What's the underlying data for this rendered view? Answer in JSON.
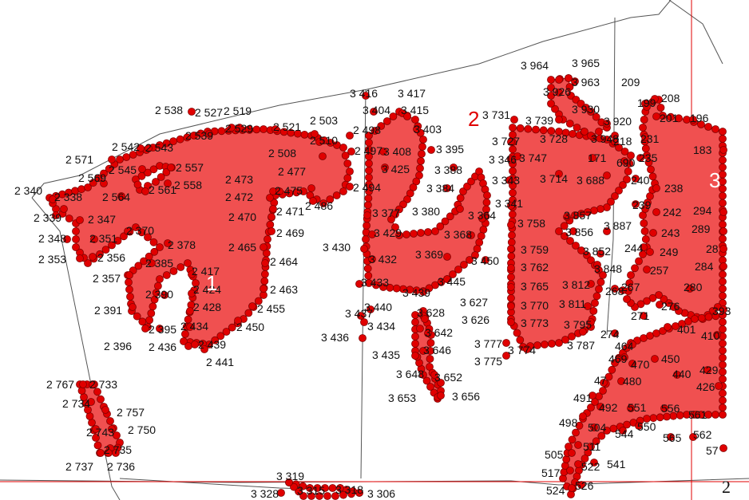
{
  "colors": {
    "fill": "#f05050",
    "marker": "#e00000",
    "marker_edge": "#800000",
    "boundary": "#555555",
    "grid": "#e00000"
  },
  "zones": [
    {
      "id": "zone-1",
      "label": "1",
      "color": "white"
    },
    {
      "id": "zone-2",
      "label": "2",
      "color": "red"
    },
    {
      "id": "zone-3",
      "label": "3",
      "color": "white"
    }
  ],
  "sheet_label": "2",
  "points": [
    {
      "label": "2 340"
    },
    {
      "label": "2 338"
    },
    {
      "label": "2 339"
    },
    {
      "label": "2 348"
    },
    {
      "label": "2 353"
    },
    {
      "label": "2 357"
    },
    {
      "label": "2 391"
    },
    {
      "label": "2 396"
    },
    {
      "label": "2 436"
    },
    {
      "label": "2 439"
    },
    {
      "label": "2 441"
    },
    {
      "label": "2 434"
    },
    {
      "label": "2 395"
    },
    {
      "label": "2 390"
    },
    {
      "label": "2 428"
    },
    {
      "label": "2 424"
    },
    {
      "label": "2 417"
    },
    {
      "label": "2 385"
    },
    {
      "label": "2 378"
    },
    {
      "label": "2 356"
    },
    {
      "label": "2 351"
    },
    {
      "label": "2 370"
    },
    {
      "label": "2 347"
    },
    {
      "label": "2 564"
    },
    {
      "label": "2 569"
    },
    {
      "label": "2 571"
    },
    {
      "label": "2 545"
    },
    {
      "label": "2 542"
    },
    {
      "label": "2 543"
    },
    {
      "label": "2 561"
    },
    {
      "label": "2 558"
    },
    {
      "label": "2 557"
    },
    {
      "label": "2 539"
    },
    {
      "label": "2 538"
    },
    {
      "label": "2 527"
    },
    {
      "label": "2 519"
    },
    {
      "label": "2 529"
    },
    {
      "label": "2 521"
    },
    {
      "label": "2 503"
    },
    {
      "label": "2 510"
    },
    {
      "label": "2 508"
    },
    {
      "label": "2 477"
    },
    {
      "label": "2 473"
    },
    {
      "label": "2 472"
    },
    {
      "label": "2 475"
    },
    {
      "label": "2 470"
    },
    {
      "label": "2 471"
    },
    {
      "label": "2 486"
    },
    {
      "label": "2 469"
    },
    {
      "label": "2 465"
    },
    {
      "label": "2 464"
    },
    {
      "label": "2 463"
    },
    {
      "label": "2 455"
    },
    {
      "label": "2 450"
    },
    {
      "label": "2 498"
    },
    {
      "label": "2 497"
    },
    {
      "label": "2 494"
    },
    {
      "label": "3 416"
    },
    {
      "label": "3 417"
    },
    {
      "label": "3 404"
    },
    {
      "label": "3 415"
    },
    {
      "label": "3 403"
    },
    {
      "label": "3 408"
    },
    {
      "label": "3 395"
    },
    {
      "label": "3 425"
    },
    {
      "label": "3 388"
    },
    {
      "label": "3 384"
    },
    {
      "label": "3 377"
    },
    {
      "label": "3 380"
    },
    {
      "label": "3 364"
    },
    {
      "label": "3 429"
    },
    {
      "label": "3 368"
    },
    {
      "label": "3 430"
    },
    {
      "label": "3 432"
    },
    {
      "label": "3 369"
    },
    {
      "label": "3 450"
    },
    {
      "label": "3 433"
    },
    {
      "label": "3 439"
    },
    {
      "label": "3 445"
    },
    {
      "label": "3 437"
    },
    {
      "label": "3 440"
    },
    {
      "label": "3 434"
    },
    {
      "label": "3 436"
    },
    {
      "label": "3 628"
    },
    {
      "label": "3 627"
    },
    {
      "label": "3 626"
    },
    {
      "label": "3 642"
    },
    {
      "label": "3 646"
    },
    {
      "label": "3 435"
    },
    {
      "label": "3 648"
    },
    {
      "label": "3 652"
    },
    {
      "label": "3 653"
    },
    {
      "label": "3 656"
    },
    {
      "label": "3 731"
    },
    {
      "label": "3 727"
    },
    {
      "label": "3 346"
    },
    {
      "label": "3 343"
    },
    {
      "label": "3 341"
    },
    {
      "label": "3 964"
    },
    {
      "label": "3 965"
    },
    {
      "label": "3 963"
    },
    {
      "label": "3 926"
    },
    {
      "label": "3 930"
    },
    {
      "label": "3 739"
    },
    {
      "label": "3 920"
    },
    {
      "label": "3 728"
    },
    {
      "label": "3 948"
    },
    {
      "label": "3 747"
    },
    {
      "label": "3 714"
    },
    {
      "label": "3 688"
    },
    {
      "label": "3 758"
    },
    {
      "label": "3 857"
    },
    {
      "label": "3 856"
    },
    {
      "label": "3 759"
    },
    {
      "label": "3 852"
    },
    {
      "label": "3 762"
    },
    {
      "label": "3 765"
    },
    {
      "label": "3 812"
    },
    {
      "label": "3 770"
    },
    {
      "label": "3 811"
    },
    {
      "label": "3 773"
    },
    {
      "label": "3 795"
    },
    {
      "label": "3 777"
    },
    {
      "label": "3 774"
    },
    {
      "label": "3 775"
    },
    {
      "label": "3 787"
    },
    {
      "label": "3 887"
    },
    {
      "label": "3 848"
    },
    {
      "label": "209"
    },
    {
      "label": "208"
    },
    {
      "label": "199"
    },
    {
      "label": "201"
    },
    {
      "label": "196"
    },
    {
      "label": "218"
    },
    {
      "label": "231"
    },
    {
      "label": "183"
    },
    {
      "label": "235"
    },
    {
      "label": "171"
    },
    {
      "label": "690"
    },
    {
      "label": "240"
    },
    {
      "label": "238"
    },
    {
      "label": "239"
    },
    {
      "label": "242"
    },
    {
      "label": "294"
    },
    {
      "label": "243"
    },
    {
      "label": "289"
    },
    {
      "label": "244"
    },
    {
      "label": "249"
    },
    {
      "label": "28"
    },
    {
      "label": "257"
    },
    {
      "label": "284"
    },
    {
      "label": "267"
    },
    {
      "label": "268"
    },
    {
      "label": "280"
    },
    {
      "label": "276"
    },
    {
      "label": "271"
    },
    {
      "label": "393"
    },
    {
      "label": "274"
    },
    {
      "label": "401"
    },
    {
      "label": "464"
    },
    {
      "label": "410"
    },
    {
      "label": "469"
    },
    {
      "label": "450"
    },
    {
      "label": "470"
    },
    {
      "label": "429"
    },
    {
      "label": "480"
    },
    {
      "label": "440"
    },
    {
      "label": "47"
    },
    {
      "label": "426"
    },
    {
      "label": "491"
    },
    {
      "label": "492"
    },
    {
      "label": "551"
    },
    {
      "label": "556"
    },
    {
      "label": "561"
    },
    {
      "label": "498"
    },
    {
      "label": "504"
    },
    {
      "label": "544"
    },
    {
      "label": "550"
    },
    {
      "label": "565"
    },
    {
      "label": "562"
    },
    {
      "label": "57"
    },
    {
      "label": "505"
    },
    {
      "label": "511"
    },
    {
      "label": "517"
    },
    {
      "label": "522"
    },
    {
      "label": "541"
    },
    {
      "label": "524"
    },
    {
      "label": "526"
    },
    {
      "label": "2 767"
    },
    {
      "label": "2 733"
    },
    {
      "label": "2 734"
    },
    {
      "label": "2 757"
    },
    {
      "label": "2 743"
    },
    {
      "label": "2 750"
    },
    {
      "label": "2 735"
    },
    {
      "label": "2 737"
    },
    {
      "label": "2 736"
    },
    {
      "label": "3 319"
    },
    {
      "label": "3 328"
    },
    {
      "label": "3 315"
    },
    {
      "label": "3 318"
    },
    {
      "label": "3 306"
    }
  ]
}
